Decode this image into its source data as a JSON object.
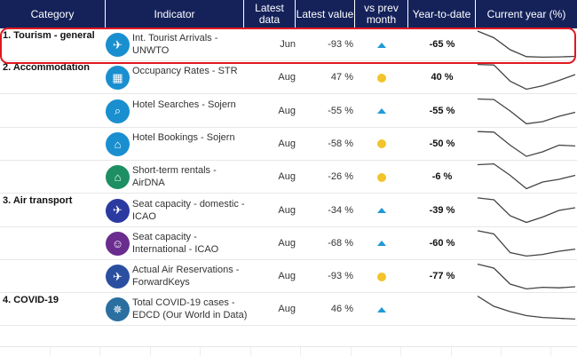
{
  "header": {
    "category": "Category",
    "indicator": "Indicator",
    "latest_data": "Latest data",
    "latest_value": "Latest value",
    "vs_prev_month": "vs prev month",
    "year_to_date": "Year-to-date",
    "current_year": "Current year (%)"
  },
  "categories": [
    "1. Tourism - general",
    "2. Accommodation",
    "3. Air transport",
    "4. COVID-19"
  ],
  "rows": [
    {
      "indicator": "Int. Tourist Arrivals - UNWTO",
      "icon": "tourist-walking-icon",
      "latest_data": "Jun",
      "latest_value": "-93 %",
      "vs_prev": "up",
      "ytd": "-65 %",
      "spark": [
        100,
        75,
        30,
        4,
        2,
        3,
        5
      ]
    },
    {
      "indicator": "Occupancy Rates - STR",
      "icon": "calendar-icon",
      "latest_data": "Aug",
      "latest_value": "47 %",
      "vs_prev": "neutral",
      "ytd": "40 %",
      "spark": [
        98,
        96,
        35,
        5,
        18,
        38,
        60
      ]
    },
    {
      "indicator": "Hotel Searches - Sojern",
      "icon": "hotel-search-icon",
      "latest_data": "Aug",
      "latest_value": "-55 %",
      "vs_prev": "up",
      "ytd": "-55 %",
      "spark": [
        95,
        93,
        50,
        2,
        10,
        30,
        45
      ]
    },
    {
      "indicator": "Hotel Bookings - Sojern",
      "icon": "hotel-booking-icon",
      "latest_data": "Aug",
      "latest_value": "-58 %",
      "vs_prev": "neutral",
      "ytd": "-50 %",
      "spark": [
        96,
        94,
        45,
        3,
        20,
        45,
        42
      ]
    },
    {
      "indicator": "Short-term rentals - AirDNA",
      "icon": "rental-property-icon",
      "latest_data": "Aug",
      "latest_value": "-26 %",
      "vs_prev": "neutral",
      "ytd": "-6 %",
      "spark": [
        95,
        98,
        55,
        5,
        30,
        40,
        55
      ]
    },
    {
      "indicator": "Seat capacity - domestic - ICAO",
      "icon": "airplane-seats-icon",
      "latest_data": "Aug",
      "latest_value": "-34 %",
      "vs_prev": "up",
      "ytd": "-39 %",
      "spark": [
        97,
        90,
        30,
        5,
        25,
        50,
        60
      ]
    },
    {
      "indicator": "Seat capacity - International - ICAO",
      "icon": "passengers-icon",
      "latest_data": "Aug",
      "latest_value": "-68 %",
      "vs_prev": "up",
      "ytd": "-60 %",
      "spark": [
        97,
        85,
        15,
        2,
        8,
        20,
        28
      ]
    },
    {
      "indicator": "Actual Air Reservations - ForwardKeys",
      "icon": "booked-flight-icon",
      "latest_data": "Aug",
      "latest_value": "-93 %",
      "vs_prev": "neutral",
      "ytd": "-77 %",
      "spark": [
        95,
        80,
        20,
        2,
        8,
        6,
        10
      ]
    },
    {
      "indicator": "Total COVID-19 cases - EDCD (Our World in Data)",
      "icon": "covid-virus-icon",
      "latest_data": "Aug",
      "latest_value": "46 %",
      "vs_prev": "up",
      "ytd": "",
      "spark": [
        98,
        60,
        40,
        25,
        18,
        15,
        12
      ]
    }
  ]
}
